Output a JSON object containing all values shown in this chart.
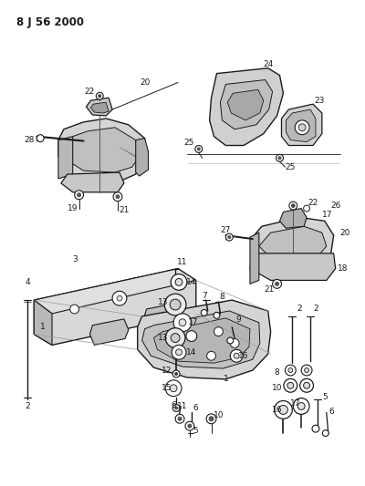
{
  "title": "8 J 56 2000",
  "bg": "#ffffff",
  "lc": "#1a1a1a",
  "figsize": [
    4.0,
    5.33
  ],
  "dpi": 100
}
